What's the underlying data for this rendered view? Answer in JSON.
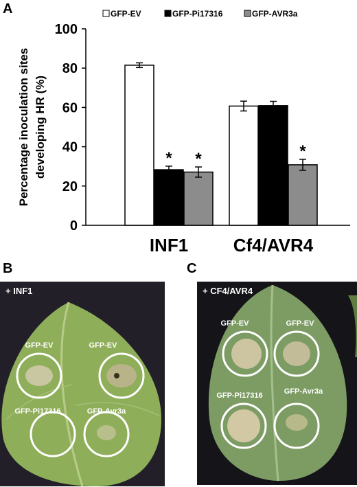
{
  "panels": {
    "a": "A",
    "b": "B",
    "c": "C"
  },
  "chart_data": {
    "type": "bar",
    "categories": [
      "INF1",
      "Cf4/AVR4"
    ],
    "series": [
      {
        "name": "GFP-EV",
        "values": [
          81.5,
          60.7
        ],
        "errors": [
          1.2,
          2.5
        ],
        "significant": [
          false,
          false
        ],
        "color": "#ffffff"
      },
      {
        "name": "GFP-Pi17316",
        "values": [
          28.3,
          60.9
        ],
        "errors": [
          1.8,
          2.2
        ],
        "significant": [
          true,
          false
        ],
        "color": "#000000"
      },
      {
        "name": "GFP-AVR3a",
        "values": [
          27.1,
          30.8
        ],
        "errors": [
          2.6,
          2.8
        ],
        "significant": [
          true,
          true
        ],
        "color": "#8c8c8c"
      }
    ],
    "ylabel_lines": [
      "Percentage inoculation sites",
      "developing HR (%)"
    ],
    "ylim": [
      0,
      100
    ],
    "yticks": [
      0,
      20,
      40,
      60,
      80,
      100
    ],
    "significance_mark": "*",
    "legend_position": "top"
  },
  "photo_b": {
    "caption": "+ INF1",
    "spots": [
      "GFP-EV",
      "GFP-EV",
      "GFP-Pi17316",
      "GFP-Avr3a"
    ]
  },
  "photo_c": {
    "caption": "+ CF4/AVR4",
    "spots": [
      "GFP-EV",
      "GFP-EV",
      "GFP-Pi17316",
      "GFP-Avr3a"
    ]
  }
}
